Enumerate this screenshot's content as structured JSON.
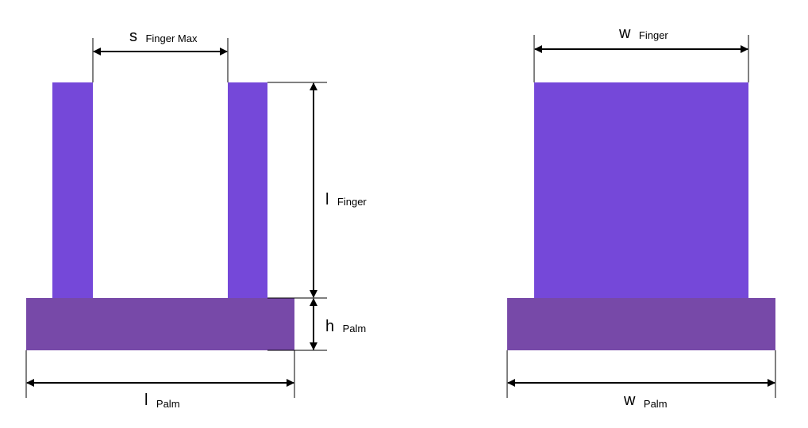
{
  "colors": {
    "finger": "#7548D9",
    "palm": "#7749A8",
    "dimension": "#000000",
    "background": "#FFFFFF"
  },
  "side_view": {
    "finger_spacing_label": {
      "main": "s",
      "sub": "Finger Max"
    },
    "finger_length_label": {
      "main": "l",
      "sub": "Finger"
    },
    "palm_height_label": {
      "main": "h",
      "sub": "Palm"
    },
    "palm_length_label": {
      "main": "l",
      "sub": "Palm"
    }
  },
  "front_view": {
    "finger_width_label": {
      "main": "w",
      "sub": "Finger"
    },
    "palm_width_label": {
      "main": "w",
      "sub": "Palm"
    }
  }
}
